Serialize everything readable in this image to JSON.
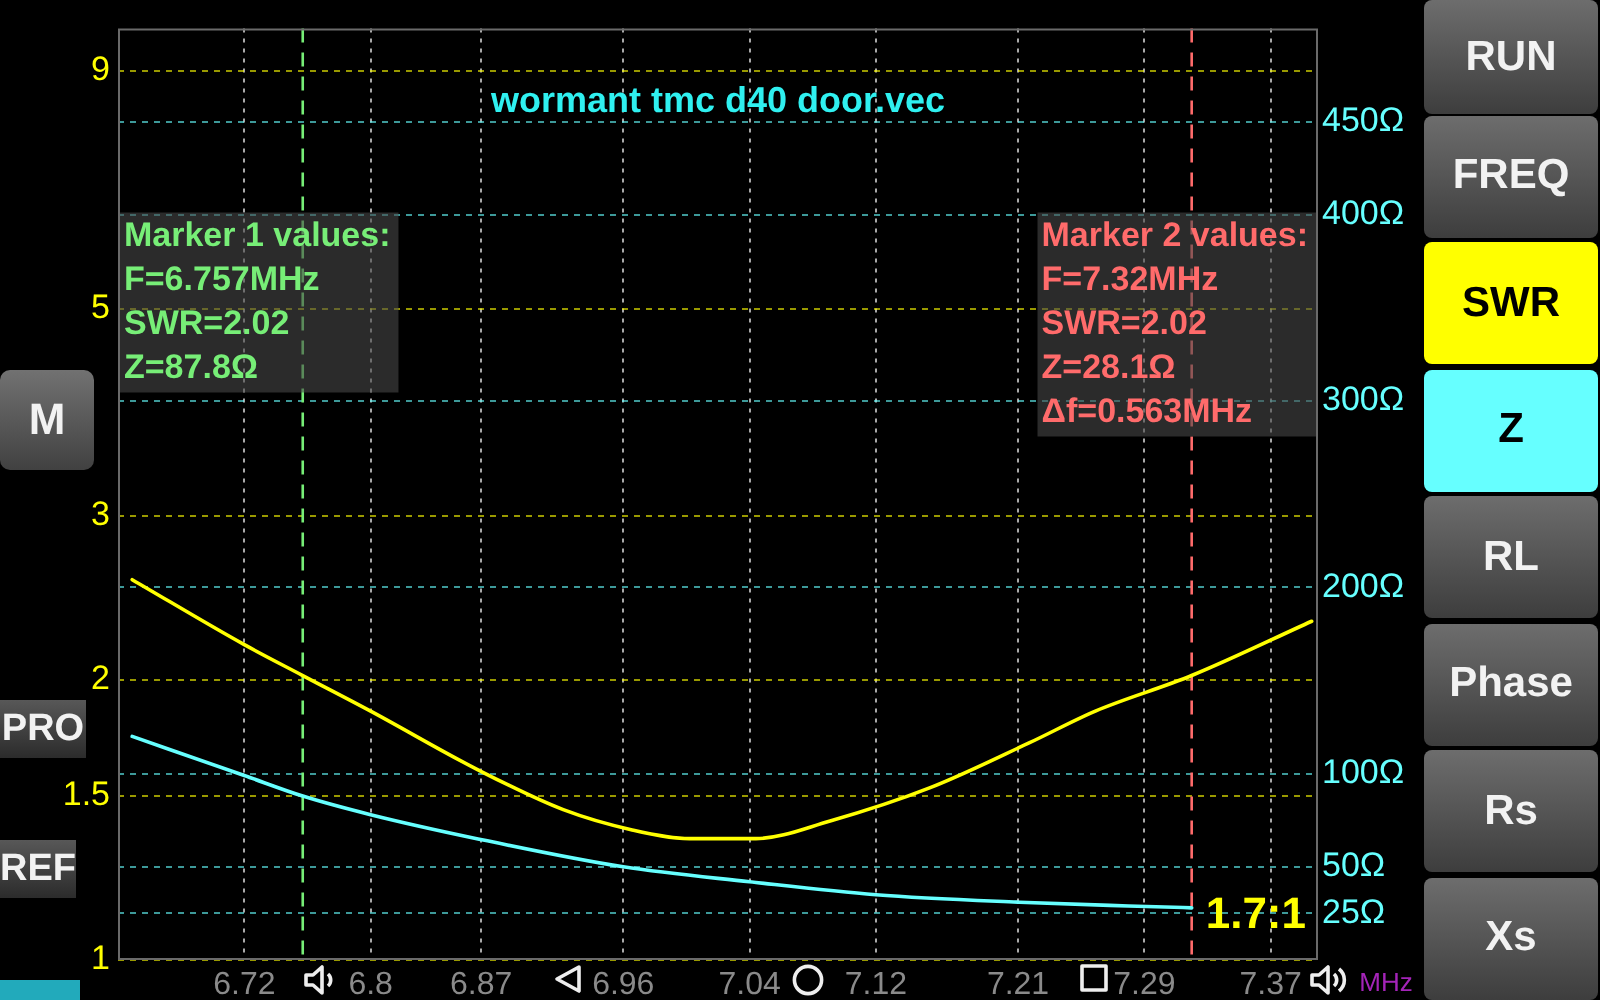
{
  "chart_data": [
    {
      "type": "other",
      "annotations": [
        "M",
        "PRO",
        "REF"
      ],
      "colors": [
        "#5a5a5a",
        "#3c3c3c",
        "#3c3c3c"
      ]
    },
    {
      "type": "line",
      "title": "wormant tmc d40 door.vec",
      "xlabel": "MHz",
      "xlim": [
        6.64,
        7.4
      ],
      "xticks": [
        6.72,
        6.8,
        6.87,
        6.96,
        7.04,
        7.12,
        7.21,
        7.29,
        7.37
      ],
      "ylim": [
        1,
        10
      ],
      "yticks": [
        1,
        1.5,
        2,
        3,
        5,
        9
      ],
      "log": "y",
      "y2lim": [
        0,
        500
      ],
      "y2ticks": [
        {
          "value": 25,
          "label": "25Ω"
        },
        {
          "value": 50,
          "label": "50Ω"
        },
        {
          "value": 100,
          "label": "100Ω"
        },
        {
          "value": 200,
          "label": "200Ω"
        },
        {
          "value": 300,
          "label": "300Ω"
        },
        {
          "value": 400,
          "label": "400Ω"
        },
        {
          "value": 450,
          "label": "450Ω"
        }
      ],
      "grid": true,
      "marker": "none",
      "series": [
        {
          "color": "#ffff00",
          "x": [
            6.649,
            6.72,
            6.757,
            6.8,
            6.868,
            6.922,
            6.965,
            7.002,
            7.044,
            7.091,
            7.154,
            7.217,
            7.259,
            7.32,
            7.396
          ],
          "values": [
            2.56,
            2.18,
            2.02,
            1.85,
            1.6,
            1.45,
            1.38,
            1.35,
            1.35,
            1.41,
            1.53,
            1.71,
            1.85,
            2.02,
            2.31
          ]
        },
        {
          "color": "#66ffff",
          "axis": "y2",
          "x": [
            6.649,
            6.72,
            6.757,
            6.8,
            6.868,
            6.96,
            7.04,
            7.12,
            7.211,
            7.28,
            7.32
          ],
          "values": [
            120,
            99,
            88,
            78,
            65,
            50,
            42,
            35,
            31,
            29,
            28
          ]
        }
      ],
      "ref_lines": [
        {
          "axis": "x",
          "value": 6.757,
          "label": "Marker 1 values:\nF=6.757MHz\nSWR=2.02\nZ=87.8Ω",
          "color": "#77ee77",
          "line_style": "dashed"
        },
        {
          "axis": "x",
          "value": 7.32,
          "label": "Marker 2 values:\nF=7.32MHz\nSWR=2.02\nZ=28.1Ω\nΔf=0.563MHz",
          "color": "#ff6b6b",
          "line_style": "dashed"
        }
      ],
      "annotations": [
        "1.7:1"
      ]
    },
    {
      "type": "other",
      "annotations": [
        "RUN",
        "FREQ",
        "SWR",
        "Z",
        "RL",
        "Phase",
        "Rs",
        "Xs"
      ],
      "colors": [
        "#555555",
        "#555555",
        "#ffff00",
        "#66ffff",
        "#555555",
        "#555555",
        "#555555",
        "#555555"
      ]
    }
  ]
}
